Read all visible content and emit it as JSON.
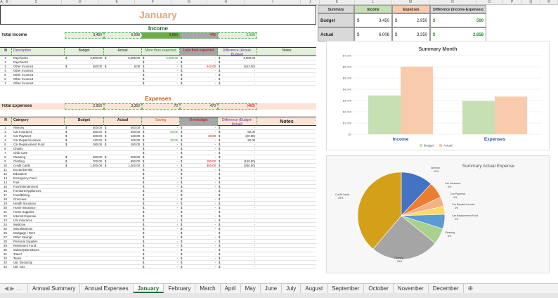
{
  "columns": [
    "A",
    "B",
    "C",
    "D",
    "E",
    "F",
    "G",
    "H",
    "I",
    "J",
    "K",
    "L",
    "M",
    "N",
    "O",
    "P",
    "Q",
    "R"
  ],
  "month_title": "January",
  "income": {
    "section_title": "Income",
    "total_label": "Total Income",
    "total_budget": "3,450",
    "total_actual": "6,008",
    "total_more": "3,000",
    "total_less": "442",
    "total_diff": "2,558",
    "headers": {
      "n": "N",
      "desc": "Description",
      "budget": "Budget",
      "actual": "Actual",
      "more": "More than expected",
      "less": "Less than expected",
      "diff": "Difference (Actual-Budget)",
      "notes": "Notes"
    },
    "rows": [
      {
        "n": "1",
        "desc": "Paycheck1",
        "budget": "3,000.00",
        "actual": "6,000.00",
        "more": "3,000.00",
        "less": "-",
        "diff": "3,000.00"
      },
      {
        "n": "2",
        "desc": "Paycheck2",
        "budget": "",
        "actual": "",
        "more": "-",
        "less": "-",
        "diff": "-"
      },
      {
        "n": "3",
        "desc": "Other Income1",
        "budget": "450.00",
        "actual": "8.00",
        "more": "-",
        "less": "442.00",
        "diff": "(442.00)"
      },
      {
        "n": "4",
        "desc": "Other Income2",
        "budget": "",
        "actual": "",
        "more": "-",
        "less": "-",
        "diff": "-"
      },
      {
        "n": "5",
        "desc": "Other Income3",
        "budget": "",
        "actual": "",
        "more": "-",
        "less": "-",
        "diff": "-"
      },
      {
        "n": "6",
        "desc": "Other Income4",
        "budget": "",
        "actual": "",
        "more": "-",
        "less": "-",
        "diff": "-"
      },
      {
        "n": "7",
        "desc": "Other Income5",
        "budget": "",
        "actual": "",
        "more": "-",
        "less": "-",
        "diff": "-"
      }
    ]
  },
  "expenses": {
    "section_title": "Expenses",
    "total_label": "Total Expenses",
    "total_budget": "2,950",
    "total_actual": "3,350",
    "total_saving": "70",
    "total_over": "470",
    "total_diff": "(400)",
    "headers": {
      "n": "N",
      "cat": "Category",
      "budget": "Budget",
      "actual": "Actual",
      "saving": "Saving",
      "over": "Overbudget",
      "diff": "Difference (Budget-Actual)",
      "notes": "Notes"
    },
    "rows": [
      {
        "n": "1",
        "cat": "Alimony",
        "budget": "400.00",
        "actual": "400.00",
        "saving": "-",
        "over": "-",
        "diff": "-"
      },
      {
        "n": "2",
        "cat": "Car Insurance",
        "budget": "250.00",
        "actual": "200.00",
        "saving": "50.00",
        "over": "-",
        "diff": "50.00"
      },
      {
        "n": "3",
        "cat": "Car Payment",
        "budget": "100.00",
        "actual": "120.00",
        "saving": "-",
        "over": "20.00",
        "diff": "(20.00)"
      },
      {
        "n": "4",
        "cat": "Car Repair/Licenses",
        "budget": "120.00",
        "actual": "100.00",
        "saving": "20.00",
        "over": "-",
        "diff": "20.00"
      },
      {
        "n": "5",
        "cat": "Car Replacement Fund",
        "budget": "180.00",
        "actual": "180.00",
        "saving": "-",
        "over": "-",
        "diff": "-"
      },
      {
        "n": "6",
        "cat": "Charity",
        "budget": "",
        "actual": "",
        "saving": "-",
        "over": "-",
        "diff": "-"
      },
      {
        "n": "7",
        "cat": "Child Care",
        "budget": "",
        "actual": "",
        "saving": "-",
        "over": "-",
        "diff": "-"
      },
      {
        "n": "8",
        "cat": "Cleaning",
        "budget": "200.00",
        "actual": "200.00",
        "saving": "-",
        "over": "-",
        "diff": "-"
      },
      {
        "n": "9",
        "cat": "Clothing",
        "budget": "700.00",
        "actual": "850.00",
        "saving": "-",
        "over": "150.00",
        "diff": "(150.00)"
      },
      {
        "n": "10",
        "cat": "Credit Cards",
        "budget": "1,000.00",
        "actual": "1,300.00",
        "saving": "-",
        "over": "300.00",
        "diff": "(300.00)"
      },
      {
        "n": "11",
        "cat": "Doctor/Dentist",
        "budget": "",
        "actual": "",
        "saving": "-",
        "over": "-",
        "diff": "-"
      },
      {
        "n": "12",
        "cat": "Education",
        "budget": "",
        "actual": "",
        "saving": "-",
        "over": "-",
        "diff": "-"
      },
      {
        "n": "13",
        "cat": "Emergency Fund",
        "budget": "",
        "actual": "",
        "saving": "-",
        "over": "-",
        "diff": "-"
      },
      {
        "n": "14",
        "cat": "Fuel",
        "budget": "",
        "actual": "",
        "saving": "-",
        "over": "-",
        "diff": "-"
      },
      {
        "n": "15",
        "cat": "Fun/Entertainment",
        "budget": "",
        "actual": "",
        "saving": "-",
        "over": "-",
        "diff": "-"
      },
      {
        "n": "16",
        "cat": "Furniture/Appliances",
        "budget": "",
        "actual": "",
        "saving": "-",
        "over": "-",
        "diff": "-"
      },
      {
        "n": "17",
        "cat": "Food/Dining",
        "budget": "",
        "actual": "",
        "saving": "-",
        "over": "-",
        "diff": "-"
      },
      {
        "n": "18",
        "cat": "Groceries",
        "budget": "",
        "actual": "",
        "saving": "-",
        "over": "-",
        "diff": "-"
      },
      {
        "n": "19",
        "cat": "Health Insurance",
        "budget": "",
        "actual": "",
        "saving": "-",
        "over": "-",
        "diff": "-"
      },
      {
        "n": "20",
        "cat": "Home Insurance",
        "budget": "",
        "actual": "",
        "saving": "-",
        "over": "-",
        "diff": "-"
      },
      {
        "n": "21",
        "cat": "Home Supplies",
        "budget": "",
        "actual": "",
        "saving": "-",
        "over": "-",
        "diff": "-"
      },
      {
        "n": "22",
        "cat": "Interest Expense",
        "budget": "",
        "actual": "",
        "saving": "-",
        "over": "-",
        "diff": "-"
      },
      {
        "n": "23",
        "cat": "Life Insurance",
        "budget": "",
        "actual": "",
        "saving": "-",
        "over": "-",
        "diff": "-"
      },
      {
        "n": "24",
        "cat": "Medicine",
        "budget": "",
        "actual": "",
        "saving": "-",
        "over": "-",
        "diff": "-"
      },
      {
        "n": "25",
        "cat": "Miscellaneous",
        "budget": "",
        "actual": "",
        "saving": "-",
        "over": "-",
        "diff": "-"
      },
      {
        "n": "26",
        "cat": "Mortgage / Rent",
        "budget": "",
        "actual": "",
        "saving": "-",
        "over": "-",
        "diff": "-"
      },
      {
        "n": "27",
        "cat": "Other Savings",
        "budget": "",
        "actual": "",
        "saving": "-",
        "over": "-",
        "diff": "-"
      },
      {
        "n": "28",
        "cat": "Personal Supplies",
        "budget": "",
        "actual": "",
        "saving": "-",
        "over": "-",
        "diff": "-"
      },
      {
        "n": "29",
        "cat": "Retirement Fund",
        "budget": "",
        "actual": "",
        "saving": "-",
        "over": "-",
        "diff": "-"
      },
      {
        "n": "30",
        "cat": "Subscriptions/Dues",
        "budget": "",
        "actual": "",
        "saving": "-",
        "over": "-",
        "diff": "-"
      },
      {
        "n": "31",
        "cat": "Travel",
        "budget": "",
        "actual": "",
        "saving": "-",
        "over": "-",
        "diff": "-"
      },
      {
        "n": "32",
        "cat": "Taxes",
        "budget": "",
        "actual": "",
        "saving": "-",
        "over": "-",
        "diff": "-"
      },
      {
        "n": "33",
        "cat": "Util. Electricity",
        "budget": "",
        "actual": "",
        "saving": "-",
        "over": "-",
        "diff": "-"
      },
      {
        "n": "34",
        "cat": "Util. Gas",
        "budget": "",
        "actual": "",
        "saving": "-",
        "over": "-",
        "diff": "-"
      }
    ]
  },
  "summary": {
    "headers": [
      "Summary",
      "Income",
      "Expenses",
      "Difference (Income-Expenses)"
    ],
    "rows": [
      {
        "label": "Budget",
        "income": "3,450",
        "expenses": "2,950",
        "diff": "500"
      },
      {
        "label": "Actual",
        "income": "6,008",
        "expenses": "3,350",
        "diff": "2,658"
      }
    ]
  },
  "currency_symbol": "$",
  "chart_data": [
    {
      "type": "bar",
      "title": "Summary Month",
      "categories": [
        "Income",
        "Expenses"
      ],
      "series": [
        {
          "name": "Budget",
          "values": [
            3450,
            2950
          ],
          "color": "#c6e0b4"
        },
        {
          "name": "Actual",
          "values": [
            6008,
            3350
          ],
          "color": "#f8cbad"
        }
      ],
      "ylim": [
        0,
        7000
      ],
      "yticks": [
        "$0",
        "$1,000",
        "$2,000",
        "$3,000",
        "$4,000",
        "$5,000",
        "$6,000",
        "$7,000"
      ],
      "legend": "bottom"
    },
    {
      "type": "pie",
      "title": "Summary Actual Expense",
      "slices": [
        {
          "label": "Alimony",
          "pct": "12%",
          "value": 400,
          "color": "#4472c4"
        },
        {
          "label": "Car Insurance",
          "pct": "6%",
          "value": 200,
          "color": "#ed7d31"
        },
        {
          "label": "Car Payment",
          "pct": "4%",
          "value": 120,
          "color": "#f4b183"
        },
        {
          "label": "Car Repair/Licenses",
          "pct": "3%",
          "value": 100,
          "color": "#ffd966"
        },
        {
          "label": "Car Replacement Fund",
          "pct": "5%",
          "value": 180,
          "color": "#5b9bd5"
        },
        {
          "label": "Cleaning",
          "pct": "6%",
          "value": 200,
          "color": "#a9d18e"
        },
        {
          "label": "Clothing",
          "pct": "25%",
          "value": 850,
          "color": "#a5a5a5"
        },
        {
          "label": "Credit Cards",
          "pct": "39%",
          "value": 1300,
          "color": "#d4a017"
        }
      ]
    }
  ],
  "tabs": [
    "Annual Summary",
    "Annual Expenses",
    "January",
    "February",
    "March",
    "April",
    "May",
    "June",
    "July",
    "August",
    "September",
    "October",
    "November",
    "December"
  ],
  "active_tab": "January"
}
